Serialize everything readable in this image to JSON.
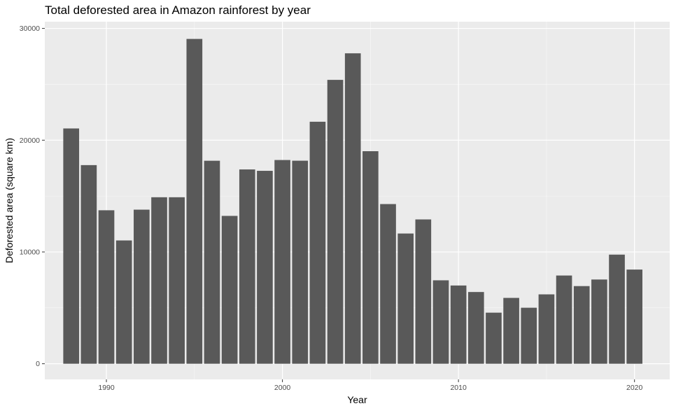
{
  "chart_data": {
    "type": "bar",
    "title": "Total deforested area in Amazon rainforest by year",
    "xlabel": "Year",
    "ylabel": "Deforested area (square km)",
    "x": [
      1988,
      1989,
      1990,
      1991,
      1992,
      1993,
      1994,
      1995,
      1996,
      1997,
      1998,
      1999,
      2000,
      2001,
      2002,
      2003,
      2004,
      2005,
      2006,
      2007,
      2008,
      2009,
      2010,
      2011,
      2012,
      2013,
      2014,
      2015,
      2016,
      2017,
      2018,
      2019,
      2020
    ],
    "values": [
      21050,
      17770,
      13730,
      11030,
      13786,
      14896,
      14896,
      29059,
      18161,
      13227,
      17383,
      17259,
      18226,
      18165,
      21651,
      25396,
      27772,
      19014,
      14286,
      11651,
      12911,
      7464,
      7000,
      6418,
      4571,
      5891,
      5012,
      6207,
      7893,
      6947,
      7536,
      9762,
      8426
    ],
    "xlim": [
      1986.5,
      2022.0
    ],
    "ylim": [
      -1400,
      30600
    ],
    "x_ticks": [
      1990,
      2000,
      2010,
      2020
    ],
    "x_tick_labels": [
      "1990",
      "2000",
      "2010",
      "2020"
    ],
    "y_ticks": [
      0,
      10000,
      20000,
      30000
    ],
    "y_tick_labels": [
      "0",
      "10000",
      "20000",
      "30000"
    ],
    "grid": true,
    "legend": "none",
    "colors": {
      "bar": "#595959",
      "panel": "#ebebeb",
      "grid_major": "#ffffff",
      "text": "#000000",
      "tick_text": "#4d4d4d",
      "tick_mark": "#333333"
    }
  }
}
